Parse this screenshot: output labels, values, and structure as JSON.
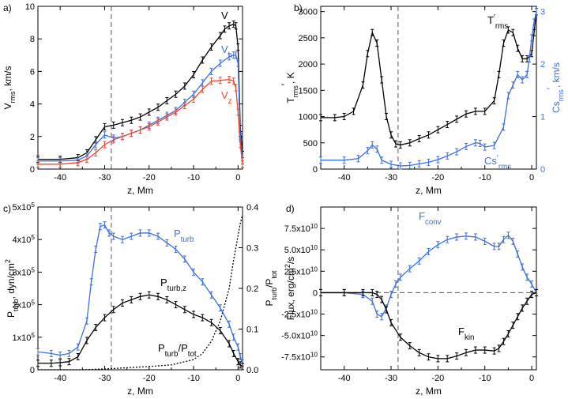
{
  "chart_data": [
    {
      "panel_label": "a)",
      "type": "line",
      "xlabel": "z, Mm",
      "ylabel_parts": [
        "V",
        "rms",
        ", km/s"
      ],
      "xlim": [
        -45,
        1
      ],
      "ylim": [
        0,
        10
      ],
      "xticks": [
        -40,
        -30,
        -20,
        -10,
        0
      ],
      "yticks": [
        0,
        2,
        4,
        6,
        8,
        10
      ],
      "vline_x": -28.5,
      "series": [
        {
          "name": "V",
          "label_main": "V",
          "label_sub": "",
          "color": "#000000",
          "x": [
            -45,
            -40,
            -36,
            -34,
            -32,
            -30,
            -28,
            -26,
            -24,
            -22,
            -20,
            -18,
            -16,
            -14,
            -12,
            -10,
            -8,
            -6,
            -4,
            -3,
            -2,
            -1,
            -0.5,
            0,
            0.5,
            1
          ],
          "y": [
            0.6,
            0.6,
            0.7,
            1.0,
            1.8,
            2.6,
            2.7,
            2.85,
            3.0,
            3.2,
            3.5,
            3.8,
            4.2,
            4.6,
            5.1,
            5.8,
            6.7,
            7.5,
            8.2,
            8.6,
            8.8,
            8.9,
            8.8,
            7.5,
            2.5,
            0.9
          ]
        },
        {
          "name": "Vh",
          "label_main": "V",
          "label_sub": "h",
          "color": "#3b6fe0",
          "x": [
            -45,
            -40,
            -36,
            -34,
            -32,
            -30,
            -28,
            -26,
            -24,
            -22,
            -20,
            -18,
            -16,
            -14,
            -12,
            -10,
            -8,
            -6,
            -4,
            -2,
            -1,
            -0.5,
            0,
            0.5,
            1
          ],
          "y": [
            0.5,
            0.5,
            0.55,
            0.8,
            1.5,
            2.1,
            1.9,
            2.0,
            2.2,
            2.4,
            2.7,
            3.0,
            3.3,
            3.6,
            4.1,
            4.6,
            5.3,
            6.0,
            6.5,
            6.9,
            7.0,
            7.0,
            6.5,
            2.0,
            0.5
          ]
        },
        {
          "name": "Vz",
          "label_main": "V",
          "label_sub": "z",
          "color": "#e8452c",
          "x": [
            -45,
            -40,
            -36,
            -34,
            -32,
            -30,
            -28,
            -26,
            -24,
            -22,
            -20,
            -18,
            -16,
            -14,
            -12,
            -10,
            -8,
            -6,
            -4,
            -2,
            -1,
            -0.5,
            0,
            0.5,
            1
          ],
          "y": [
            0.3,
            0.3,
            0.4,
            0.6,
            1.0,
            1.5,
            1.8,
            2.0,
            2.2,
            2.4,
            2.6,
            2.9,
            3.2,
            3.5,
            3.9,
            4.3,
            4.9,
            5.4,
            5.45,
            5.5,
            5.4,
            5.0,
            3.5,
            1.5,
            0.3
          ]
        }
      ]
    },
    {
      "panel_label": "b)",
      "type": "line",
      "xlabel": "z, Mm",
      "ylabel_parts": [
        "T",
        "rms",
        "′",
        ", K"
      ],
      "y2label_parts": [
        "Cs",
        "rms",
        "′",
        ", km/s"
      ],
      "xlim": [
        -45,
        1
      ],
      "ylim": [
        0,
        3100
      ],
      "y2lim": [
        0,
        3.1
      ],
      "xticks": [
        -40,
        -30,
        -20,
        -10,
        0
      ],
      "yticks": [
        0,
        500,
        1000,
        1500,
        2000,
        2500,
        3000
      ],
      "y2ticks": [
        0,
        1,
        2,
        3
      ],
      "vline_x": -28.5,
      "series": [
        {
          "name": "T'rms",
          "label_main": "T",
          "label_sub": "rms",
          "label_prime": "′",
          "color": "#000000",
          "axis": "left",
          "x": [
            -45,
            -42,
            -40,
            -38,
            -36,
            -35,
            -34,
            -33,
            -32,
            -31,
            -30,
            -29,
            -28,
            -26,
            -24,
            -22,
            -20,
            -18,
            -16,
            -14,
            -12,
            -10,
            -8,
            -7,
            -6,
            -5,
            -4,
            -3,
            -2,
            -1,
            0,
            0.5,
            1
          ],
          "y": [
            980,
            980,
            1000,
            1100,
            1600,
            2200,
            2600,
            2400,
            1700,
            1000,
            650,
            480,
            460,
            500,
            580,
            650,
            750,
            850,
            950,
            1050,
            1100,
            1100,
            1300,
            1800,
            2400,
            2650,
            2600,
            2300,
            2100,
            2100,
            2200,
            2600,
            3000
          ]
        },
        {
          "name": "Cs'rms",
          "label_main": "Cs",
          "label_sub": "rms",
          "label_prime": "′",
          "color": "#3b6fe0",
          "axis": "right",
          "x": [
            -45,
            -40,
            -37,
            -35,
            -34,
            -33,
            -32,
            -30,
            -28,
            -26,
            -24,
            -22,
            -20,
            -18,
            -16,
            -14,
            -12,
            -11,
            -10,
            -8,
            -6,
            -5,
            -4,
            -3,
            -2,
            -1,
            -0.5,
            0,
            0.5,
            1
          ],
          "y": [
            0.17,
            0.17,
            0.2,
            0.35,
            0.46,
            0.38,
            0.17,
            0.09,
            0.06,
            0.07,
            0.1,
            0.13,
            0.18,
            0.25,
            0.33,
            0.43,
            0.5,
            0.49,
            0.42,
            0.45,
            0.8,
            1.4,
            1.6,
            1.8,
            1.7,
            1.8,
            2.1,
            2.5,
            2.8,
            3.0
          ]
        }
      ]
    },
    {
      "panel_label": "c)",
      "type": "line",
      "xlabel": "z, Mm",
      "ylabel_parts": [
        "P",
        "turb",
        ", dyn/cm",
        "2"
      ],
      "y2label_parts": [
        "P",
        "turb",
        "/P",
        "tot"
      ],
      "xlim": [
        -45,
        1
      ],
      "ylim": [
        0,
        500000
      ],
      "y2lim": [
        0,
        0.4
      ],
      "xticks": [
        -40,
        -30,
        -20,
        -10,
        0
      ],
      "yticks": [
        0,
        100000,
        200000,
        300000,
        400000,
        500000
      ],
      "ytick_mantissa": [
        "0",
        "1x10",
        "2x10",
        "3x10",
        "4x10",
        "5x10"
      ],
      "ytick_exponent": [
        "",
        "5",
        "5",
        "5",
        "5",
        "5"
      ],
      "y2ticks": [
        0.0,
        0.1,
        0.2,
        0.3,
        0.4
      ],
      "vline_x": -28.5,
      "series": [
        {
          "name": "Pturb",
          "label_main": "P",
          "label_sub": "turb",
          "color": "#3b6fe0",
          "axis": "left",
          "x": [
            -45,
            -42,
            -40,
            -38,
            -36,
            -34,
            -33,
            -32,
            -31,
            -30,
            -29,
            -28,
            -26,
            -24,
            -22,
            -20,
            -18,
            -16,
            -14,
            -12,
            -10,
            -8,
            -6,
            -4,
            -2,
            -1,
            0,
            0.5,
            1
          ],
          "y": [
            55000,
            50000,
            45000,
            50000,
            70000,
            150000,
            270000,
            370000,
            440000,
            445000,
            420000,
            410000,
            400000,
            410000,
            420000,
            420000,
            410000,
            390000,
            370000,
            340000,
            300000,
            270000,
            230000,
            190000,
            140000,
            100000,
            70000,
            40000,
            20000
          ]
        },
        {
          "name": "Pturb,z",
          "label_main": "P",
          "label_sub": "turb,z",
          "color": "#000000",
          "axis": "left",
          "x": [
            -45,
            -42,
            -40,
            -38,
            -36,
            -34,
            -32,
            -30,
            -28,
            -26,
            -24,
            -22,
            -20,
            -18,
            -16,
            -14,
            -12,
            -10,
            -8,
            -6,
            -4,
            -2,
            -1,
            0,
            0.5,
            1
          ],
          "y": [
            20000,
            20000,
            22000,
            25000,
            40000,
            90000,
            130000,
            160000,
            185000,
            205000,
            215000,
            225000,
            230000,
            225000,
            215000,
            200000,
            185000,
            170000,
            160000,
            145000,
            120000,
            80000,
            50000,
            25000,
            15000,
            10000
          ]
        },
        {
          "name": "Pturb/Ptot",
          "label_main": "P",
          "label_sub": "turb",
          "label_tail": "/P",
          "label_tail_sub": "tot",
          "color": "#000000",
          "axis": "right",
          "dashed": true,
          "x": [
            -45,
            -35,
            -30,
            -25,
            -20,
            -15,
            -10,
            -8,
            -6,
            -4,
            -2,
            -1,
            0,
            0.5,
            1
          ],
          "y": [
            0.0,
            0.0,
            0.002,
            0.005,
            0.008,
            0.012,
            0.025,
            0.04,
            0.07,
            0.12,
            0.2,
            0.27,
            0.33,
            0.36,
            0.38
          ]
        }
      ]
    },
    {
      "panel_label": "d)",
      "type": "line",
      "xlabel": "z, Mm",
      "ylabel_parts": [
        "Flux, erg/cm",
        "2",
        "/s"
      ],
      "xlim": [
        -45,
        1
      ],
      "ylim": [
        -90000000000,
        100000000000
      ],
      "xticks": [
        -40,
        -30,
        -20,
        -10,
        0
      ],
      "yticks": [
        -75000000000,
        -50000000000,
        -25000000000,
        0,
        25000000000,
        50000000000,
        75000000000
      ],
      "ytick_mantissa": [
        "-7.5x10",
        "-5.0x10",
        "-2.5x10",
        "0",
        "2.5x10",
        "5.0x10",
        "7.5x10"
      ],
      "ytick_exponent": [
        "10",
        "10",
        "10",
        "",
        "10",
        "10",
        "10"
      ],
      "vline_x": -28.5,
      "hline_y": 0,
      "series": [
        {
          "name": "Fconv",
          "label_main": "F",
          "label_sub": "conv",
          "color": "#3b6fe0",
          "x": [
            -45,
            -40,
            -36,
            -34,
            -33,
            -32,
            -31,
            -30,
            -29,
            -28,
            -26,
            -24,
            -22,
            -20,
            -18,
            -16,
            -14,
            -12,
            -10,
            -8,
            -7,
            -6,
            -5,
            -4,
            -3,
            -2,
            -1,
            0,
            1
          ],
          "y": [
            0,
            0,
            -2000000000,
            -10000000000,
            -25000000000,
            -28000000000,
            -18000000000,
            -2000000000,
            10000000000,
            18000000000,
            28000000000,
            37000000000,
            48000000000,
            56000000000,
            62000000000,
            65000000000,
            66000000000,
            65000000000,
            60000000000,
            54000000000,
            54000000000,
            62000000000,
            67000000000,
            60000000000,
            45000000000,
            30000000000,
            18000000000,
            10000000000,
            0
          ]
        },
        {
          "name": "Fkin",
          "label_main": "F",
          "label_sub": "kin",
          "color": "#000000",
          "x": [
            -45,
            -40,
            -36,
            -34,
            -33,
            -32,
            -31,
            -30,
            -28,
            -26,
            -24,
            -22,
            -20,
            -18,
            -16,
            -14,
            -12,
            -10,
            -8,
            -7,
            -6,
            -5,
            -4,
            -3,
            -2,
            -1,
            0,
            1
          ],
          "y": [
            0,
            0,
            0,
            0,
            -2000000000,
            -8000000000,
            -20000000000,
            -35000000000,
            -52000000000,
            -62000000000,
            -70000000000,
            -75000000000,
            -77000000000,
            -77000000000,
            -74000000000,
            -70000000000,
            -67000000000,
            -67000000000,
            -68000000000,
            -65000000000,
            -57000000000,
            -48000000000,
            -38000000000,
            -28000000000,
            -18000000000,
            -10000000000,
            -2000000000,
            0
          ]
        }
      ]
    }
  ]
}
